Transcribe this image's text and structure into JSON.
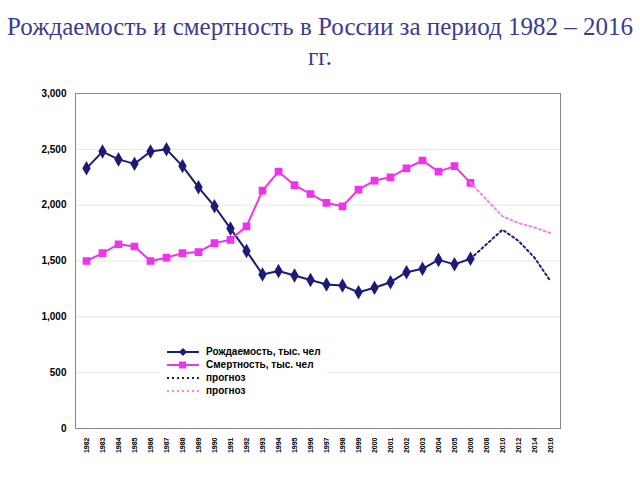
{
  "chart_data": {
    "type": "line",
    "title": "Рождаемость и смертность в России за период 1982 – 2016 гг.",
    "categories": [
      "1982",
      "1983",
      "1984",
      "1985",
      "1986",
      "1987",
      "1988",
      "1989",
      "1990",
      "1991",
      "1992",
      "1993",
      "1994",
      "1995",
      "1996",
      "1997",
      "1998",
      "1999",
      "2000",
      "2001",
      "2002",
      "2003",
      "2004",
      "2005",
      "2006",
      "2008",
      "2010",
      "2012",
      "2014",
      "2016"
    ],
    "series": [
      {
        "name": "Рождаемость, тыс. чел",
        "color": "#1c1c78",
        "marker": "diamond",
        "line_style": "solid",
        "values": [
          2330,
          2480,
          2410,
          2370,
          2480,
          2500,
          2350,
          2160,
          1990,
          1790,
          1590,
          1380,
          1410,
          1370,
          1330,
          1290,
          1280,
          1220,
          1260,
          1310,
          1400,
          1430,
          1510,
          1470,
          1520,
          null,
          null,
          null,
          null,
          null
        ]
      },
      {
        "name": "Смертность, тыс. чел",
        "color": "#ee33ee",
        "marker": "square",
        "line_style": "solid",
        "values": [
          1500,
          1570,
          1650,
          1630,
          1500,
          1530,
          1570,
          1580,
          1660,
          1690,
          1810,
          2130,
          2300,
          2180,
          2100,
          2020,
          1990,
          2140,
          2220,
          2250,
          2330,
          2400,
          2300,
          2350,
          2200,
          null,
          null,
          null,
          null,
          null
        ]
      },
      {
        "name": "прогноз",
        "color": "#1c1c78",
        "marker": "none",
        "line_style": "dotted",
        "values": [
          null,
          null,
          null,
          null,
          null,
          null,
          null,
          null,
          null,
          null,
          null,
          null,
          null,
          null,
          null,
          null,
          null,
          null,
          null,
          null,
          null,
          null,
          null,
          null,
          1520,
          1650,
          1780,
          1680,
          1530,
          1320
        ]
      },
      {
        "name": "прогноз",
        "color": "#ee88ee",
        "marker": "none",
        "line_style": "dotted",
        "values": [
          null,
          null,
          null,
          null,
          null,
          null,
          null,
          null,
          null,
          null,
          null,
          null,
          null,
          null,
          null,
          null,
          null,
          null,
          null,
          null,
          null,
          null,
          null,
          null,
          2200,
          2050,
          1900,
          1840,
          1800,
          1750
        ]
      }
    ],
    "ylim": [
      0,
      3000
    ],
    "yticks": [
      0,
      500,
      1000,
      1500,
      2000,
      2500,
      3000
    ],
    "grid": true,
    "legend": "bottom"
  }
}
